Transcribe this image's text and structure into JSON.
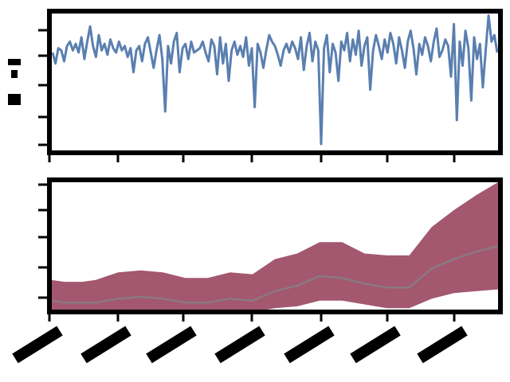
{
  "chart_data": [
    {
      "type": "line",
      "title": "",
      "xlabel": "",
      "ylabel": "",
      "ylim": [
        -4.5,
        2
      ],
      "grid": false,
      "legend": "none",
      "color": "#5a7fb0",
      "series": [
        {
          "values": [
            0.1,
            -0.4,
            0.3,
            0.2,
            -0.3,
            0.4,
            0.6,
            0.2,
            0.5,
            0.1,
            0.8,
            -0.2,
            0.6,
            1.3,
            0.4,
            -0.1,
            0.9,
            0.2,
            0.5,
            0.0,
            0.7,
            0.3,
            0.1,
            0.6,
            0.2,
            0.4,
            -0.1,
            0.3,
            -0.8,
            0.2,
            0.4,
            -0.3,
            0.5,
            0.8,
            0.1,
            -0.6,
            0.2,
            0.9,
            -0.2,
            -2.6,
            0.4,
            -0.4,
            0.6,
            1.0,
            -0.8,
            0.3,
            0.5,
            -0.2,
            0.6,
            0.1,
            0.2,
            0.3,
            0.6,
            0.1,
            -0.3,
            0.7,
            0.4,
            -0.9,
            0.8,
            -0.4,
            0.5,
            -1.2,
            0.2,
            0.6,
            0.0,
            0.4,
            -0.1,
            0.8,
            -0.5,
            0.3,
            -2.4,
            0.5,
            0.1,
            -0.6,
            0.2,
            0.9,
            0.6,
            0.4,
            0.0,
            -0.5,
            0.2,
            0.5,
            0.1,
            0.6,
            0.3,
            -0.2,
            0.8,
            -0.7,
            0.4,
            1.0,
            -0.3,
            0.6,
            0.2,
            -4.1,
            0.3,
            0.9,
            -0.8,
            0.5,
            0.1,
            -1.2,
            0.6,
            0.2,
            1.0,
            -0.3,
            0.7,
            0.0,
            1.1,
            -0.5,
            0.4,
            0.8,
            -1.6,
            0.2,
            0.9,
            0.4,
            -0.2,
            0.7,
            0.1,
            1.0,
            0.5,
            -0.4,
            0.8,
            0.2,
            -0.6,
            0.6,
            1.1,
            0.3,
            -0.9,
            0.5,
            0.0,
            0.8,
            0.4,
            -0.3,
            0.6,
            1.2,
            -0.1,
            0.2,
            0.7,
            0.4,
            -1.0,
            1.4,
            -3.0,
            0.6,
            -0.5,
            1.1,
            0.3,
            -2.1,
            0.8,
            -0.2,
            0.5,
            -1.5,
            0.2,
            1.8,
            0.6,
            0.9,
            0.1
          ]
        }
      ]
    },
    {
      "type": "area",
      "title": "",
      "xlabel": "",
      "ylabel": "",
      "ylim": [
        0,
        7
      ],
      "grid": false,
      "legend": "none",
      "band_color": "#a3586f",
      "line_color": "#8a7a80",
      "x": [
        0,
        0.03,
        0.07,
        0.1,
        0.15,
        0.2,
        0.25,
        0.3,
        0.35,
        0.4,
        0.45,
        0.5,
        0.55,
        0.6,
        0.65,
        0.7,
        0.75,
        0.8,
        0.85,
        0.9,
        0.95,
        1.0
      ],
      "series": [
        {
          "name": "upper",
          "values": [
            1.7,
            1.6,
            1.6,
            1.7,
            2.1,
            2.2,
            2.1,
            1.8,
            1.8,
            2.1,
            2.0,
            2.8,
            3.1,
            3.7,
            3.7,
            3.1,
            3.0,
            3.0,
            4.5,
            5.4,
            6.2,
            6.9
          ]
        },
        {
          "name": "mean",
          "values": [
            0.6,
            0.5,
            0.5,
            0.5,
            0.7,
            0.8,
            0.7,
            0.5,
            0.5,
            0.7,
            0.6,
            1.1,
            1.4,
            1.9,
            1.8,
            1.5,
            1.3,
            1.3,
            2.3,
            2.8,
            3.2,
            3.5
          ]
        },
        {
          "name": "lower",
          "values": [
            0.0,
            0.0,
            0.0,
            0.0,
            0.0,
            0.1,
            0.0,
            0.0,
            0.0,
            0.0,
            0.0,
            0.2,
            0.3,
            0.6,
            0.6,
            0.4,
            0.2,
            0.2,
            0.7,
            1.0,
            1.1,
            1.2
          ]
        }
      ]
    }
  ]
}
